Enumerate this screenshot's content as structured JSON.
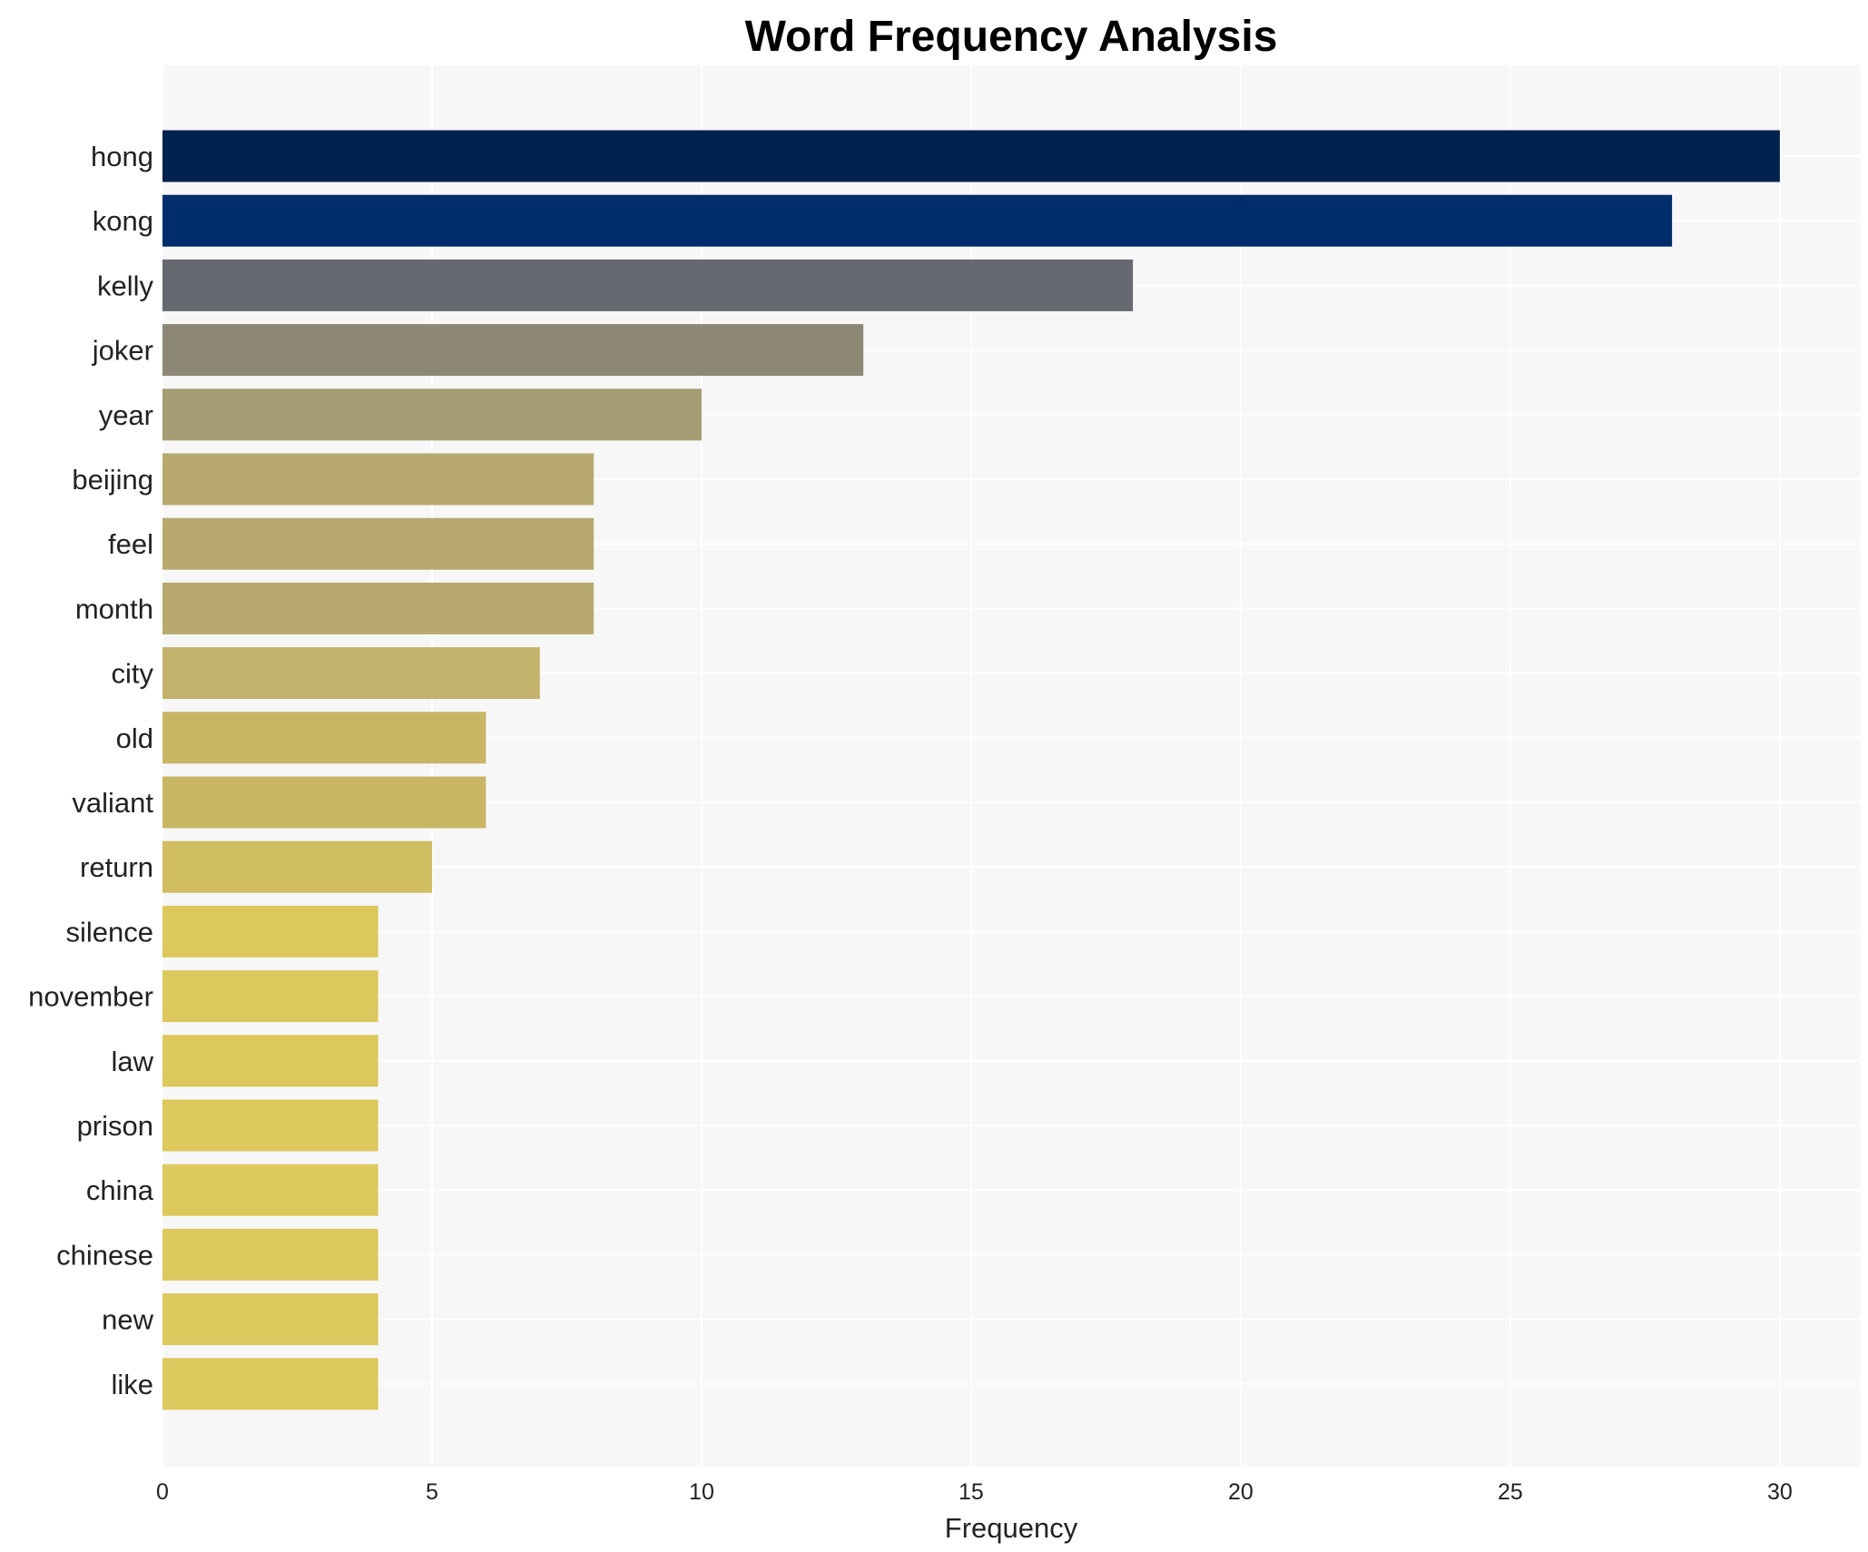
{
  "chart_data": {
    "type": "bar",
    "orientation": "horizontal",
    "title": "Word Frequency Analysis",
    "xlabel": "Frequency",
    "ylabel": "",
    "categories": [
      "hong",
      "kong",
      "kelly",
      "joker",
      "year",
      "beijing",
      "feel",
      "month",
      "city",
      "old",
      "valiant",
      "return",
      "silence",
      "november",
      "law",
      "prison",
      "china",
      "chinese",
      "new",
      "like"
    ],
    "values": [
      30,
      28,
      18,
      13,
      10,
      8,
      8,
      8,
      7,
      6,
      6,
      5,
      4,
      4,
      4,
      4,
      4,
      4,
      4,
      4
    ],
    "colors": [
      "#00224e",
      "#002d6b",
      "#666970",
      "#8e8877",
      "#a59d73",
      "#b8aa6f",
      "#b8aa6f",
      "#b8aa6f",
      "#c2b26b",
      "#c9b665",
      "#c9b665",
      "#d1bd61",
      "#dcc85c",
      "#dcc85c",
      "#dcc85c",
      "#dcc85c",
      "#dcc85c",
      "#dcc85c",
      "#dcc85c",
      "#dcc85c"
    ],
    "xlim": [
      0,
      31.5
    ],
    "xticks": [
      0,
      5,
      10,
      15,
      20,
      25,
      30
    ],
    "grid": true,
    "plot_background": "#f7f7f7"
  }
}
